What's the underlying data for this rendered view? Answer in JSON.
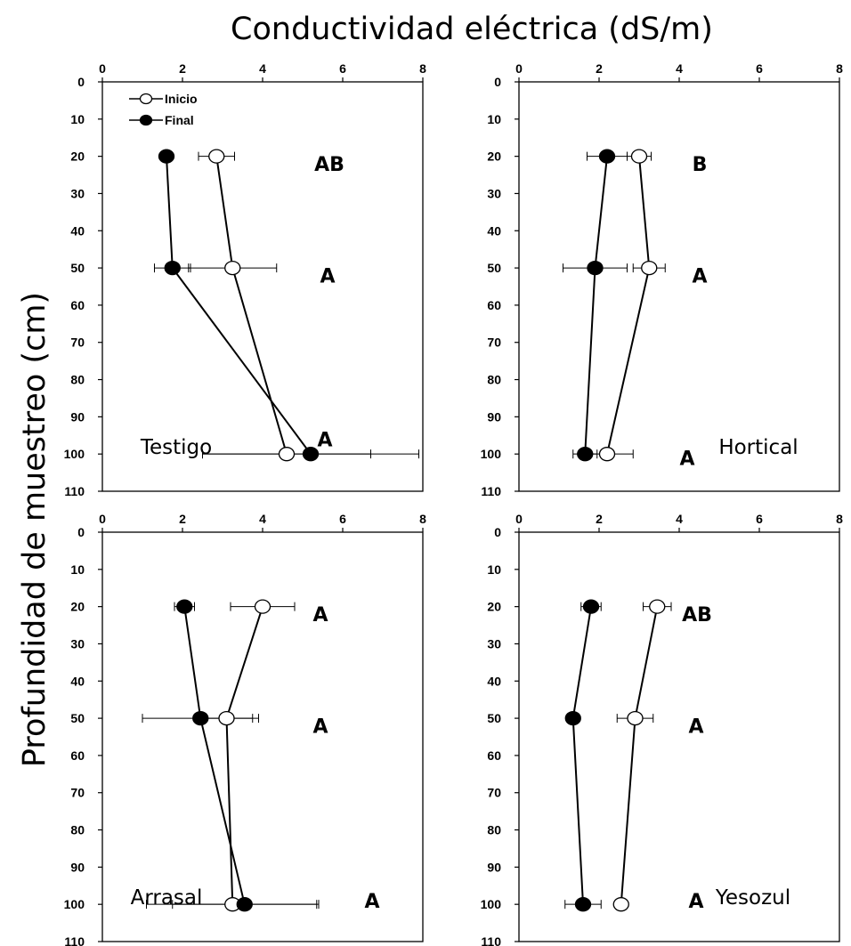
{
  "title": "Conductividad eléctrica (dS/m)",
  "ylabel": "Profundidad de muestreo (cm)",
  "legend": [
    {
      "label": "Inicio",
      "marker": "open-circle"
    },
    {
      "label": "Final",
      "marker": "filled-circle"
    }
  ],
  "colors": {
    "line": "#000000",
    "open_marker_fill": "#ffffff",
    "filled_marker_fill": "#000000"
  },
  "chart_data": [
    {
      "type": "line",
      "panel": "Testigo",
      "xlim": [
        0,
        8
      ],
      "ylim": [
        0,
        110
      ],
      "x_ticks": [
        "0",
        "2",
        "4",
        "6",
        "8"
      ],
      "y_ticks": [
        "0",
        "10",
        "20",
        "30",
        "40",
        "50",
        "60",
        "70",
        "80",
        "90",
        "100",
        "110"
      ],
      "depths": [
        20,
        50,
        100
      ],
      "series": [
        {
          "name": "Inicio",
          "values": [
            2.85,
            3.25,
            4.6
          ],
          "error": [
            0.45,
            1.1,
            2.1
          ]
        },
        {
          "name": "Final",
          "values": [
            1.6,
            1.75,
            5.2
          ],
          "error": [
            0.0,
            0.45,
            2.7
          ]
        }
      ],
      "significance": [
        "AB",
        "A",
        "A"
      ]
    },
    {
      "type": "line",
      "panel": "Hortical",
      "xlim": [
        0,
        8
      ],
      "ylim": [
        0,
        110
      ],
      "x_ticks": [
        "0",
        "2",
        "4",
        "6",
        "8"
      ],
      "y_ticks": [
        "0",
        "10",
        "20",
        "30",
        "40",
        "50",
        "60",
        "70",
        "80",
        "90",
        "100",
        "110"
      ],
      "depths": [
        20,
        50,
        100
      ],
      "series": [
        {
          "name": "Inicio",
          "values": [
            3.0,
            3.25,
            2.2
          ],
          "error": [
            0.3,
            0.4,
            0.65
          ]
        },
        {
          "name": "Final",
          "values": [
            2.2,
            1.9,
            1.65
          ],
          "error": [
            0.5,
            0.8,
            0.3
          ]
        }
      ],
      "significance": [
        "B",
        "A",
        "A"
      ]
    },
    {
      "type": "line",
      "panel": "Arrasal",
      "xlim": [
        0,
        8
      ],
      "ylim": [
        0,
        110
      ],
      "x_ticks": [
        "0",
        "2",
        "4",
        "6",
        "8"
      ],
      "y_ticks": [
        "0",
        "10",
        "20",
        "30",
        "40",
        "50",
        "60",
        "70",
        "80",
        "90",
        "100",
        "110"
      ],
      "depths": [
        20,
        50,
        100
      ],
      "series": [
        {
          "name": "Inicio",
          "values": [
            4.0,
            3.1,
            3.25
          ],
          "error": [
            0.8,
            0.65,
            2.15
          ]
        },
        {
          "name": "Final",
          "values": [
            2.05,
            2.45,
            3.55
          ],
          "error": [
            0.25,
            1.45,
            1.8
          ]
        }
      ],
      "significance": [
        "A",
        "A",
        "A"
      ]
    },
    {
      "type": "line",
      "panel": "Yesozul",
      "xlim": [
        0,
        8
      ],
      "ylim": [
        0,
        110
      ],
      "x_ticks": [
        "0",
        "2",
        "4",
        "6",
        "8"
      ],
      "y_ticks": [
        "0",
        "10",
        "20",
        "30",
        "40",
        "50",
        "60",
        "70",
        "80",
        "90",
        "100",
        "110"
      ],
      "depths": [
        20,
        50,
        100
      ],
      "series": [
        {
          "name": "Inicio",
          "values": [
            3.45,
            2.9,
            2.55
          ],
          "error": [
            0.35,
            0.45,
            0.0
          ]
        },
        {
          "name": "Final",
          "values": [
            1.8,
            1.35,
            1.6
          ],
          "error": [
            0.25,
            0.0,
            0.45
          ]
        }
      ],
      "significance": [
        "AB",
        "A",
        "A"
      ]
    }
  ]
}
